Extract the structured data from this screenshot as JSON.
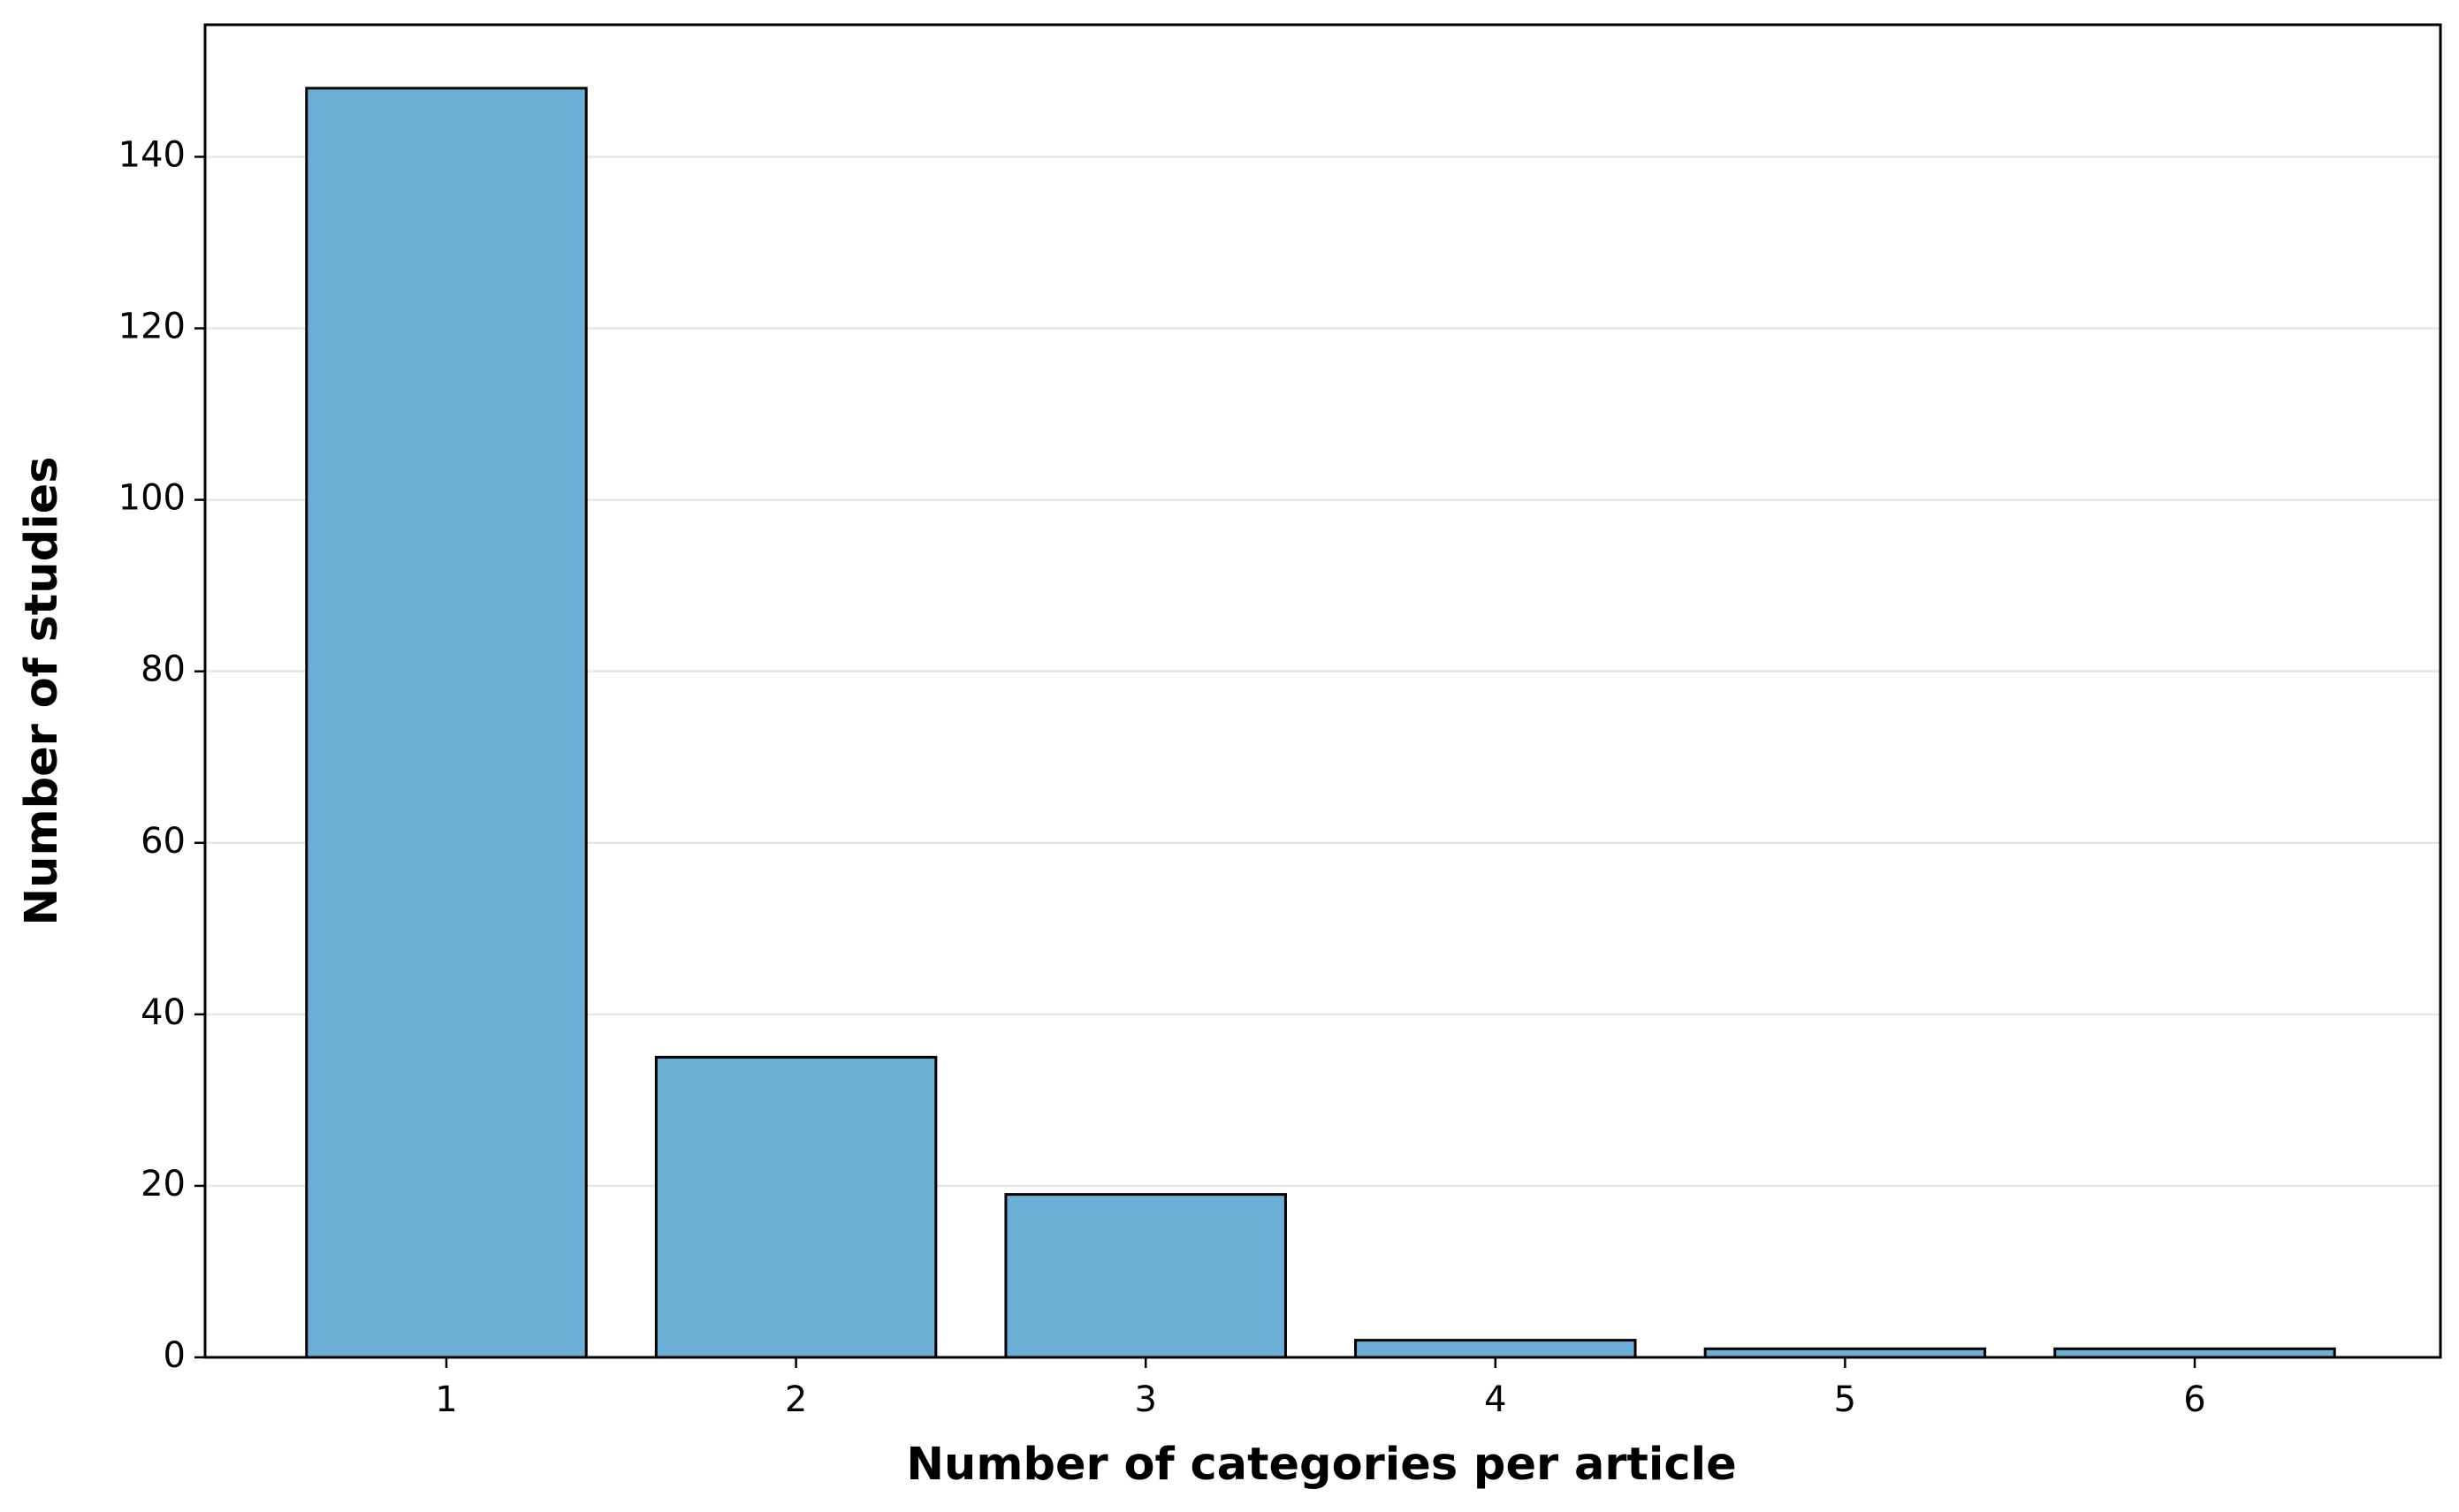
{
  "chart_data": {
    "type": "bar",
    "x_label": "Number of categories per article",
    "y_label": "Number of studies",
    "categories": [
      "1",
      "2",
      "3",
      "4",
      "5",
      "6"
    ],
    "values": [
      148,
      35,
      19,
      2,
      1,
      1
    ],
    "color": "#6baed6",
    "edge_color": "#000000",
    "ylim": [
      0,
      155.4
    ],
    "yticks": [
      0,
      20,
      40,
      60,
      80,
      100,
      120,
      140
    ],
    "grid": true
  }
}
